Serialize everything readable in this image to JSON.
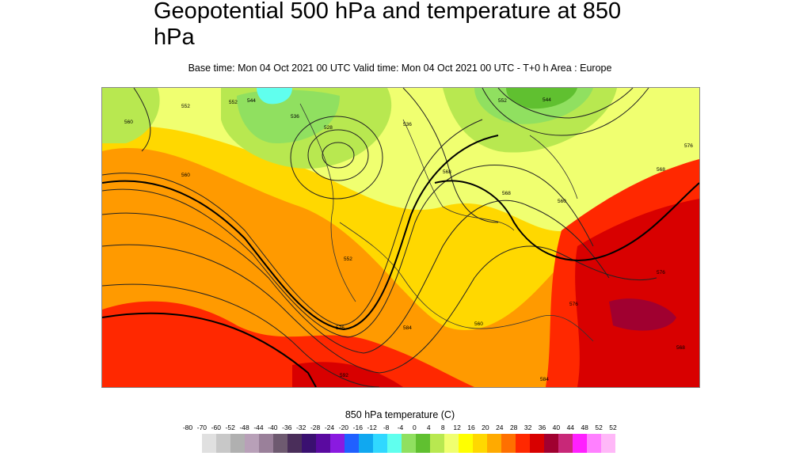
{
  "header": {
    "title": "Geopotential 500 hPa and temperature at 850 hPa",
    "subtitle": "Base time: Mon 04 Oct 2021 00 UTC Valid time: Mon 04 Oct 2021 00 UTC - T+0 h Area : Europe"
  },
  "map": {
    "contour_labels": [
      "552",
      "560",
      "552",
      "544",
      "536",
      "528",
      "560",
      "568",
      "552",
      "544",
      "536",
      "552",
      "560",
      "568",
      "576",
      "584",
      "568",
      "576",
      "560",
      "576",
      "576",
      "568",
      "584",
      "592"
    ]
  },
  "legend": {
    "title": "850 hPa temperature (C)",
    "ticks": [
      "-80",
      "-70",
      "-60",
      "-52",
      "-48",
      "-44",
      "-40",
      "-36",
      "-32",
      "-28",
      "-24",
      "-20",
      "-16",
      "-12",
      "-8",
      "-4",
      "0",
      "4",
      "8",
      "12",
      "16",
      "20",
      "24",
      "28",
      "32",
      "36",
      "40",
      "44",
      "48",
      "52",
      "52"
    ],
    "colors": [
      "#e0e0e0",
      "#c8c8c8",
      "#b0b0b0",
      "#b8a0b8",
      "#9a809a",
      "#6e5a70",
      "#4a2e5a",
      "#3a1070",
      "#5a0aa0",
      "#8a1ae0",
      "#2060ff",
      "#10a8f0",
      "#30d8ff",
      "#60ffee",
      "#90e060",
      "#60c030",
      "#b8e850",
      "#f0ff70",
      "#ffff00",
      "#ffd800",
      "#ffaa00",
      "#ff7000",
      "#ff2800",
      "#d80000",
      "#a00030",
      "#c82878",
      "#ff20ff",
      "#ff80ff",
      "#ffb8f8",
      "#f0c8f0",
      "#e0e0e0"
    ]
  }
}
